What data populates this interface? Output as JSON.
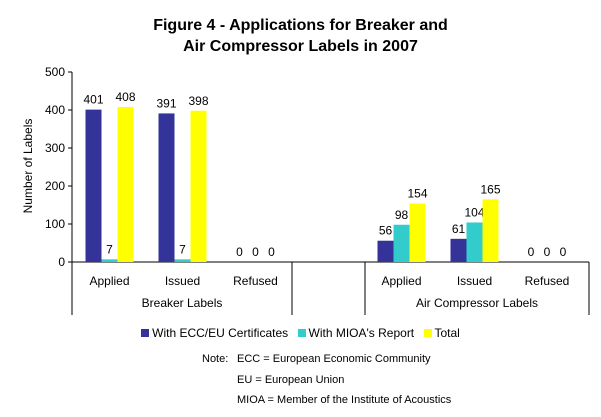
{
  "chart_data": {
    "type": "bar",
    "title": "Figure 4 - Applications for Breaker and",
    "subtitle": "Air Compressor Labels in 2007",
    "ylabel": "Number of Labels",
    "xlabel": "",
    "ylim": [
      0,
      500
    ],
    "yticks": [
      "0",
      "100",
      "200",
      "300",
      "400",
      "500"
    ],
    "groups": [
      {
        "name": "Breaker Labels",
        "categories": [
          "Applied",
          "Issued",
          "Refused"
        ]
      },
      {
        "name": "Air Compressor Labels",
        "categories": [
          "Applied",
          "Issued",
          "Refused"
        ]
      }
    ],
    "series": [
      {
        "name": "With ECC/EU Certificates",
        "color": "#333399",
        "values": [
          401,
          391,
          0,
          56,
          61,
          0
        ]
      },
      {
        "name": "With MIOA's Report",
        "color": "#33CCCC",
        "values": [
          7,
          7,
          0,
          98,
          104,
          0
        ]
      },
      {
        "name": "Total",
        "color": "#FFFF00",
        "values": [
          408,
          398,
          0,
          154,
          165,
          0
        ]
      }
    ],
    "legend_position": "bottom",
    "grid": false
  },
  "note": {
    "label": "Note:",
    "lines": [
      "ECC = European Economic Community",
      "EU = European Union",
      "MIOA = Member of the Institute of Acoustics"
    ]
  }
}
